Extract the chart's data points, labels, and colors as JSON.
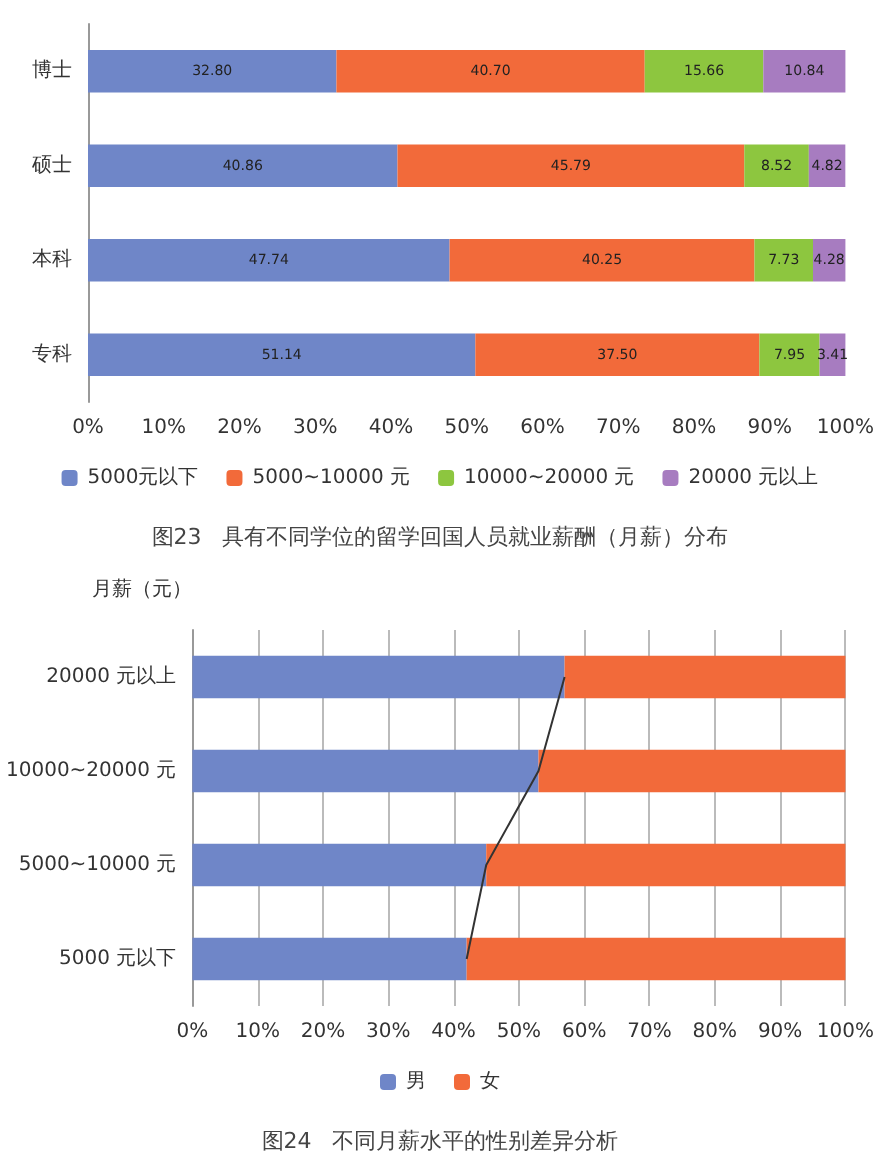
{
  "chart_data": [
    {
      "type": "bar",
      "title": "图23   具有不同学位的留学回国人员就业薪酬（月薪）分布",
      "orientation": "horizontal",
      "stacked": true,
      "categories": [
        "博士",
        "硕士",
        "本科",
        "专科"
      ],
      "xlim": [
        0,
        100
      ],
      "xticks": [
        {
          "value": 0,
          "label": "0%"
        },
        {
          "value": 10,
          "label": "10%"
        },
        {
          "value": 20,
          "label": "20%"
        },
        {
          "value": 30,
          "label": "30%"
        },
        {
          "value": 40,
          "label": "40%"
        },
        {
          "value": 50,
          "label": "50%"
        },
        {
          "value": 60,
          "label": "60%"
        },
        {
          "value": 70,
          "label": "70%"
        },
        {
          "value": 80,
          "label": "80%"
        },
        {
          "value": 90,
          "label": "90%"
        },
        {
          "value": 100,
          "label": "100%"
        }
      ],
      "grid": false,
      "legend": "bottom",
      "series": [
        {
          "name": "5000元以下",
          "color": "#6f86c8",
          "values": [
            32.8,
            40.86,
            47.74,
            51.14
          ],
          "value_labels": [
            "32.80",
            "40.86",
            "47.74",
            "51.14"
          ]
        },
        {
          "name": "5000~10000 元",
          "color": "#f26a3a",
          "values": [
            40.7,
            45.79,
            40.25,
            37.5
          ],
          "value_labels": [
            "40.70",
            "45.79",
            "40.25",
            "37.50"
          ]
        },
        {
          "name": "10000~20000 元",
          "color": "#8dc63f",
          "values": [
            15.66,
            8.52,
            7.73,
            7.95
          ],
          "value_labels": [
            "15.66",
            "8.52",
            "7.73",
            "7.95"
          ]
        },
        {
          "name": "20000 元以上",
          "color": "#a77cc0",
          "values": [
            10.84,
            4.82,
            4.28,
            3.41
          ],
          "value_labels": [
            "10.84",
            "4.82",
            "4.28",
            "3.41"
          ]
        }
      ]
    },
    {
      "type": "bar",
      "title": "图24   不同月薪水平的性别差异分析",
      "ylabel": "月薪（元）",
      "orientation": "horizontal",
      "stacked": true,
      "categories": [
        "20000 元以上",
        "10000~20000 元",
        "5000~10000 元",
        "5000 元以下"
      ],
      "xlim": [
        0,
        100
      ],
      "xticks": [
        {
          "value": 0,
          "label": "0%"
        },
        {
          "value": 10,
          "label": "10%"
        },
        {
          "value": 20,
          "label": "20%"
        },
        {
          "value": 30,
          "label": "30%"
        },
        {
          "value": 40,
          "label": "40%"
        },
        {
          "value": 50,
          "label": "50%"
        },
        {
          "value": 60,
          "label": "60%"
        },
        {
          "value": 70,
          "label": "70%"
        },
        {
          "value": 80,
          "label": "80%"
        },
        {
          "value": 90,
          "label": "90%"
        },
        {
          "value": 100,
          "label": "100%"
        }
      ],
      "grid": "x",
      "legend": "bottom",
      "series": [
        {
          "name": "男",
          "color": "#6f86c8",
          "values": [
            57,
            53,
            45,
            42
          ]
        },
        {
          "name": "女",
          "color": "#f26a3a",
          "values": [
            43,
            47,
            55,
            58
          ]
        },
        {
          "type": "line",
          "color": "#333333",
          "values": [
            57,
            53,
            45,
            42
          ]
        }
      ]
    }
  ]
}
